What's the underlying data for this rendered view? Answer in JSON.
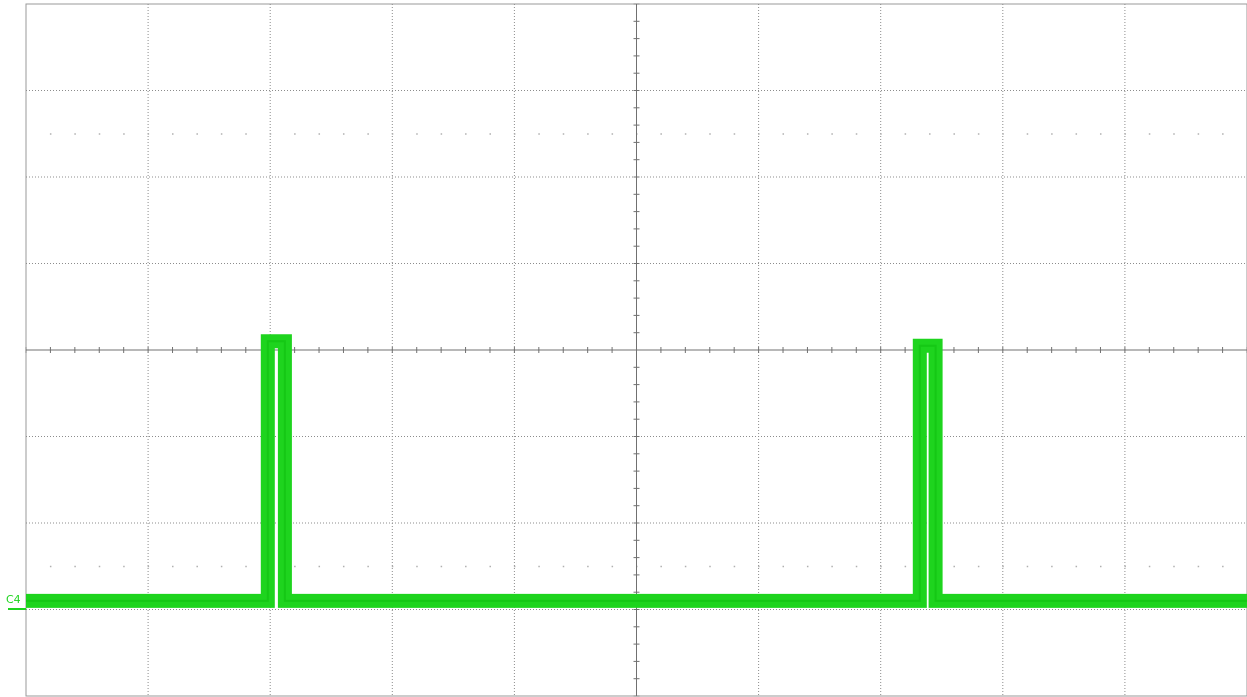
{
  "channel": {
    "label": "C4",
    "color": "#1ed41e"
  },
  "grid": {
    "color": "#8c8c8c",
    "axis_color": "#707070",
    "h_divisions": 10,
    "v_divisions": 8
  },
  "chart_data": {
    "type": "line",
    "title": "",
    "xlabel": "",
    "ylabel": "",
    "grid": true,
    "xlim": [
      0,
      10
    ],
    "ylim": [
      -4,
      4
    ],
    "series": [
      {
        "name": "C4",
        "x": [
          0,
          1.98,
          1.98,
          2.12,
          2.12,
          7.32,
          7.32,
          7.45,
          7.45,
          10
        ],
        "y": [
          -2.9,
          -2.9,
          0.1,
          0.1,
          -2.9,
          -2.9,
          0.05,
          0.05,
          -2.9,
          -2.9
        ]
      }
    ]
  }
}
